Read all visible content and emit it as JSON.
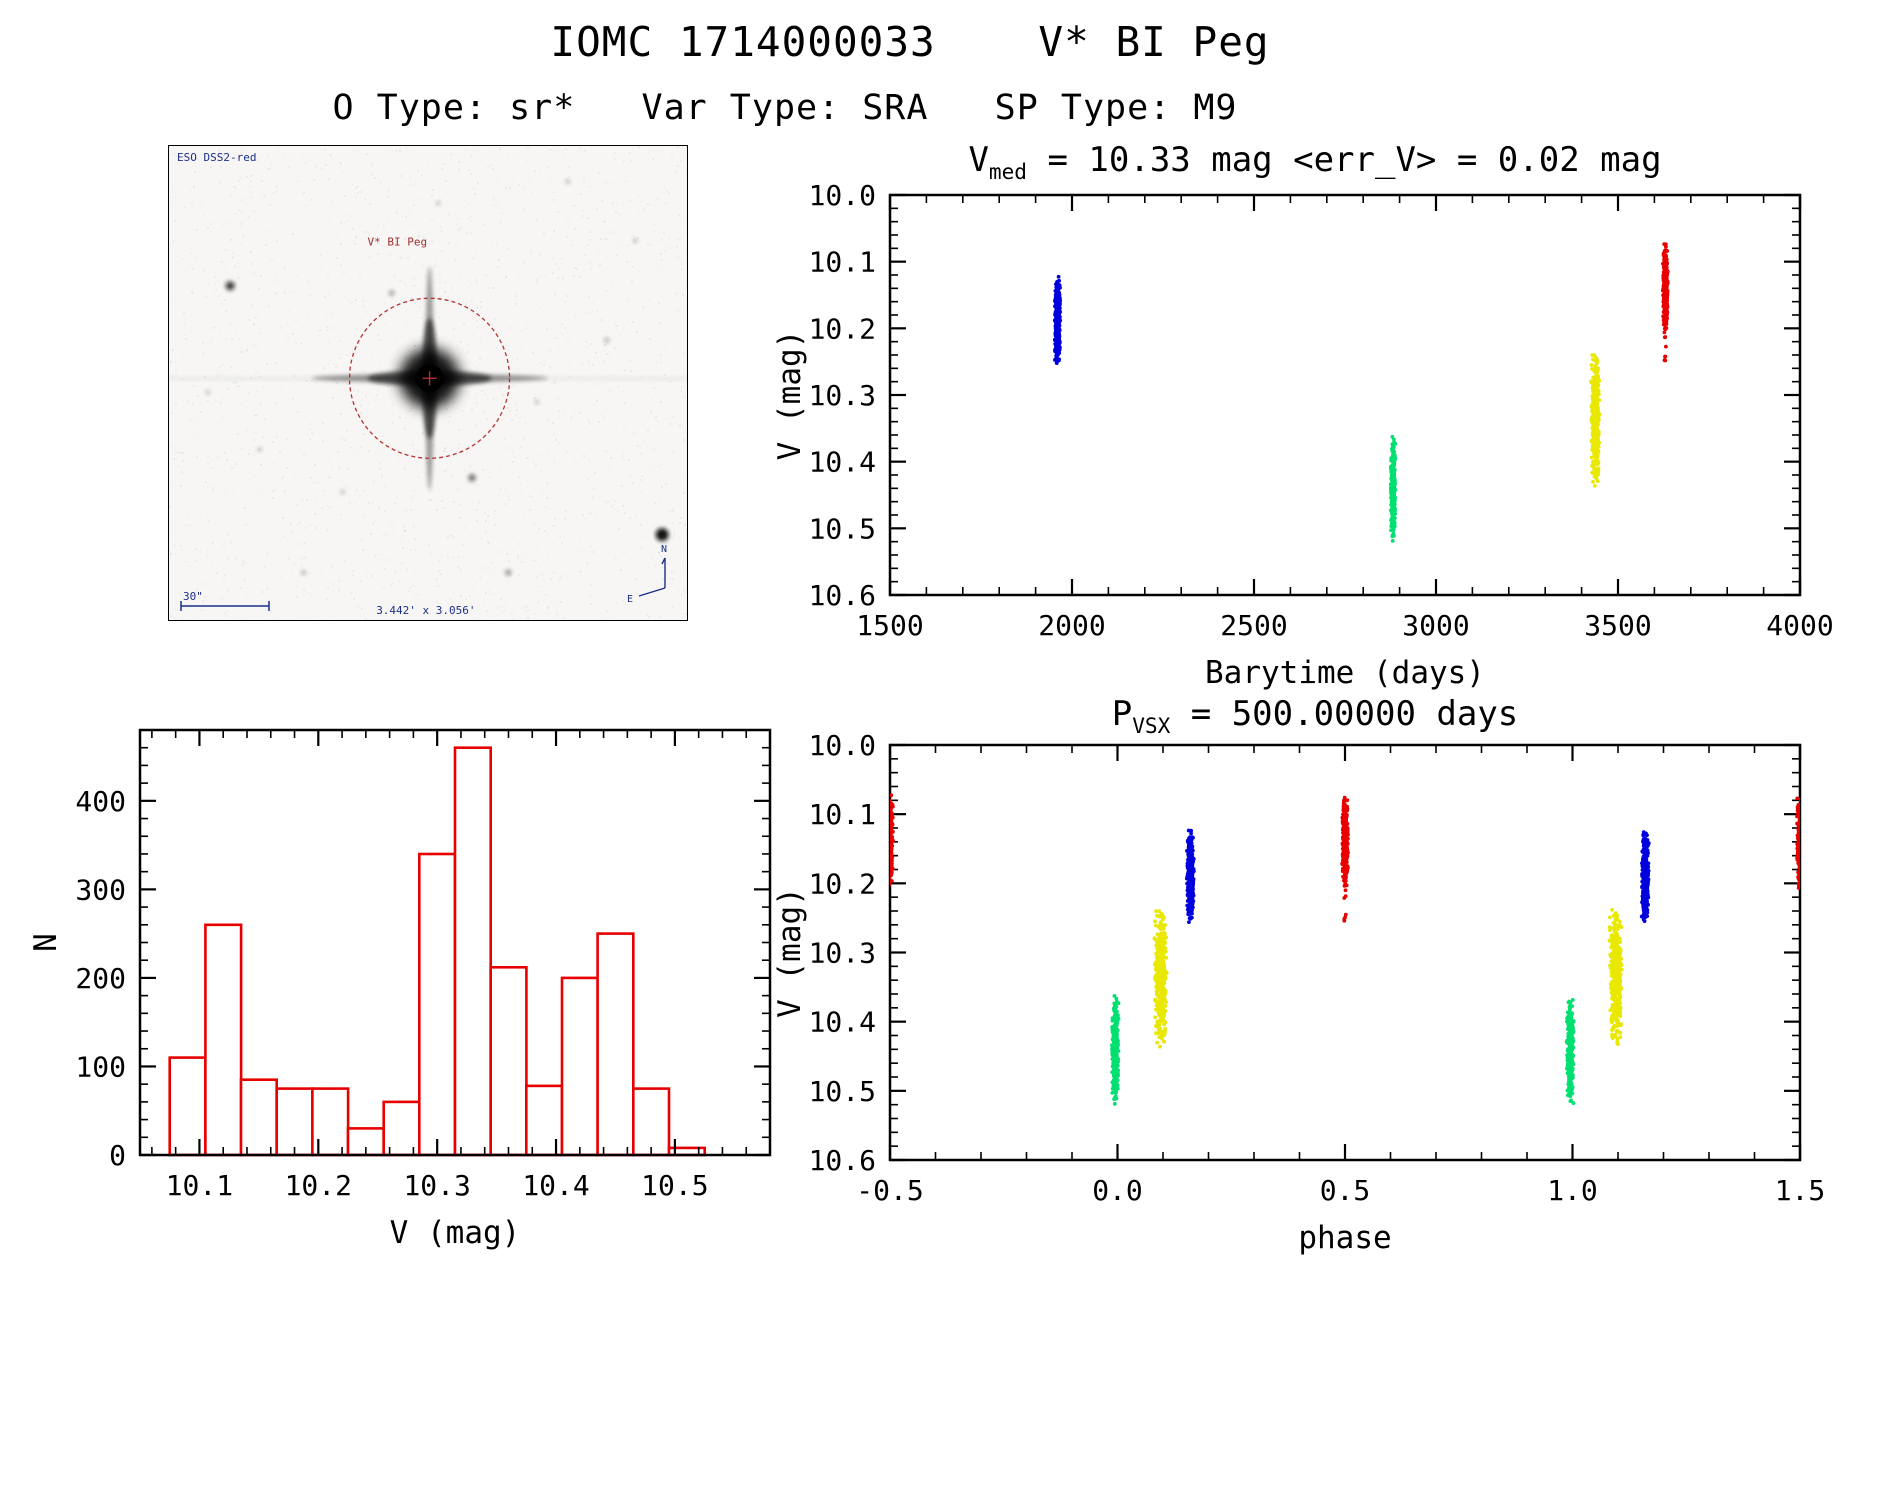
{
  "page": {
    "title": "IOMC 1714000033    V* BI Peg",
    "subtitle": "O Type: sr*   Var Type: SRA   SP Type: M9"
  },
  "sky_image": {
    "survey_label": "ESO DSS2-red",
    "target_label": "V* BI Peg",
    "scale_label": "30\"",
    "size_label": "3.442' x 3.056'",
    "compass_north": "N",
    "compass_east": "E",
    "annotation_color": "#b43333",
    "overlay_color": "#1a2f8a"
  },
  "chart_data": [
    {
      "id": "lightcurve",
      "type": "scatter",
      "title": {
        "prefix": "V",
        "sub": "med",
        "rest": " = 10.33 mag <err_V> = 0.02 mag"
      },
      "xlabel": "Barytime (days)",
      "ylabel": "V (mag)",
      "xlim": [
        1500,
        4000
      ],
      "ylim": [
        10.0,
        10.6
      ],
      "y_down": true,
      "xticks": [
        1500,
        2000,
        2500,
        3000,
        3500,
        4000
      ],
      "xtick_labels": [
        "1500",
        "2000",
        "2500",
        "3000",
        "3500",
        "4000"
      ],
      "yticks": [
        10.0,
        10.1,
        10.2,
        10.3,
        10.4,
        10.5,
        10.6
      ],
      "ytick_labels": [
        "10.0",
        "10.1",
        "10.2",
        "10.3",
        "10.4",
        "10.5",
        "10.6"
      ],
      "x_minor": 4,
      "y_minor": 4,
      "series": [
        {
          "name": "epoch-1",
          "color": "#0000dd",
          "x": 1960,
          "x_spread": 8,
          "v_range": [
            10.12,
            10.26
          ],
          "n": 360
        },
        {
          "name": "epoch-2",
          "color": "#00e070",
          "x": 2882,
          "x_spread": 7,
          "v_range": [
            10.36,
            10.52
          ],
          "n": 330
        },
        {
          "name": "epoch-3",
          "color": "#e8e800",
          "x": 3438,
          "x_spread": 12,
          "v_range": [
            10.23,
            10.44
          ],
          "n": 390
        },
        {
          "name": "epoch-4",
          "color": "#e80000",
          "x": 3630,
          "x_spread": 7,
          "v_range": [
            10.07,
            10.21
          ],
          "n": 340
        },
        {
          "name": "epoch-4-outliers",
          "color": "#e80000",
          "x": 3630,
          "x_spread": 3,
          "v_range": [
            10.21,
            10.26
          ],
          "n": 7,
          "dist": "uniform"
        }
      ]
    },
    {
      "id": "histogram",
      "type": "histogram",
      "color": "#e80000",
      "xlabel": "V (mag)",
      "ylabel": "N",
      "xlim": [
        10.05,
        10.58
      ],
      "ylim": [
        0,
        480
      ],
      "y_down": false,
      "xticks": [
        10.1,
        10.2,
        10.3,
        10.4,
        10.5
      ],
      "xtick_labels": [
        "10.1",
        "10.2",
        "10.3",
        "10.4",
        "10.5"
      ],
      "yticks": [
        0,
        100,
        200,
        300,
        400
      ],
      "ytick_labels": [
        "0",
        "100",
        "200",
        "300",
        "400"
      ],
      "x_minor": 4,
      "y_minor": 4,
      "bin_start": 10.075,
      "bin_width": 0.03,
      "counts": [
        110,
        260,
        85,
        75,
        75,
        30,
        60,
        340,
        460,
        212,
        78,
        200,
        250,
        75,
        8
      ]
    },
    {
      "id": "phase",
      "type": "scatter",
      "title": {
        "prefix": "P",
        "sub": "VSX",
        "rest": " = 500.00000 days"
      },
      "xlabel": "phase",
      "ylabel": "V (mag)",
      "xlim": [
        -0.5,
        1.5
      ],
      "ylim": [
        10.0,
        10.6
      ],
      "y_down": true,
      "xticks": [
        -0.5,
        0.0,
        0.5,
        1.0,
        1.5
      ],
      "xtick_labels": [
        "-0.5",
        "0.0",
        "0.5",
        "1.0",
        "1.5"
      ],
      "yticks": [
        10.0,
        10.1,
        10.2,
        10.3,
        10.4,
        10.5,
        10.6
      ],
      "ytick_labels": [
        "10.0",
        "10.1",
        "10.2",
        "10.3",
        "10.4",
        "10.5",
        "10.6"
      ],
      "x_minor": 4,
      "y_minor": 4,
      "series": [
        {
          "name": "red-phase-neg0.5",
          "color": "#e80000",
          "x": -0.5,
          "x_spread": 0.007,
          "v_range": [
            10.07,
            10.21
          ],
          "n": 220
        },
        {
          "name": "green-phase-0.0",
          "color": "#00e070",
          "x": -0.005,
          "x_spread": 0.008,
          "v_range": [
            10.36,
            10.52
          ],
          "n": 330
        },
        {
          "name": "yellow-phase-0.1",
          "color": "#e8e800",
          "x": 0.095,
          "x_spread": 0.014,
          "v_range": [
            10.23,
            10.44
          ],
          "n": 390
        },
        {
          "name": "blue-phase-0.16",
          "color": "#0000dd",
          "x": 0.16,
          "x_spread": 0.008,
          "v_range": [
            10.12,
            10.26
          ],
          "n": 360
        },
        {
          "name": "red-phase-0.5",
          "color": "#e80000",
          "x": 0.5,
          "x_spread": 0.007,
          "v_range": [
            10.07,
            10.21
          ],
          "n": 340
        },
        {
          "name": "red-phase-0.5-outliers",
          "color": "#e80000",
          "x": 0.5,
          "x_spread": 0.003,
          "v_range": [
            10.21,
            10.26
          ],
          "n": 7,
          "dist": "uniform"
        },
        {
          "name": "green-phase-1.0",
          "color": "#00e070",
          "x": 0.995,
          "x_spread": 0.008,
          "v_range": [
            10.36,
            10.52
          ],
          "n": 330
        },
        {
          "name": "yellow-phase-1.1",
          "color": "#e8e800",
          "x": 1.095,
          "x_spread": 0.014,
          "v_range": [
            10.23,
            10.44
          ],
          "n": 390
        },
        {
          "name": "blue-phase-1.16",
          "color": "#0000dd",
          "x": 1.16,
          "x_spread": 0.008,
          "v_range": [
            10.12,
            10.26
          ],
          "n": 360
        },
        {
          "name": "red-phase-1.5",
          "color": "#e80000",
          "x": 1.5,
          "x_spread": 0.007,
          "v_range": [
            10.07,
            10.21
          ],
          "n": 220
        }
      ]
    }
  ]
}
